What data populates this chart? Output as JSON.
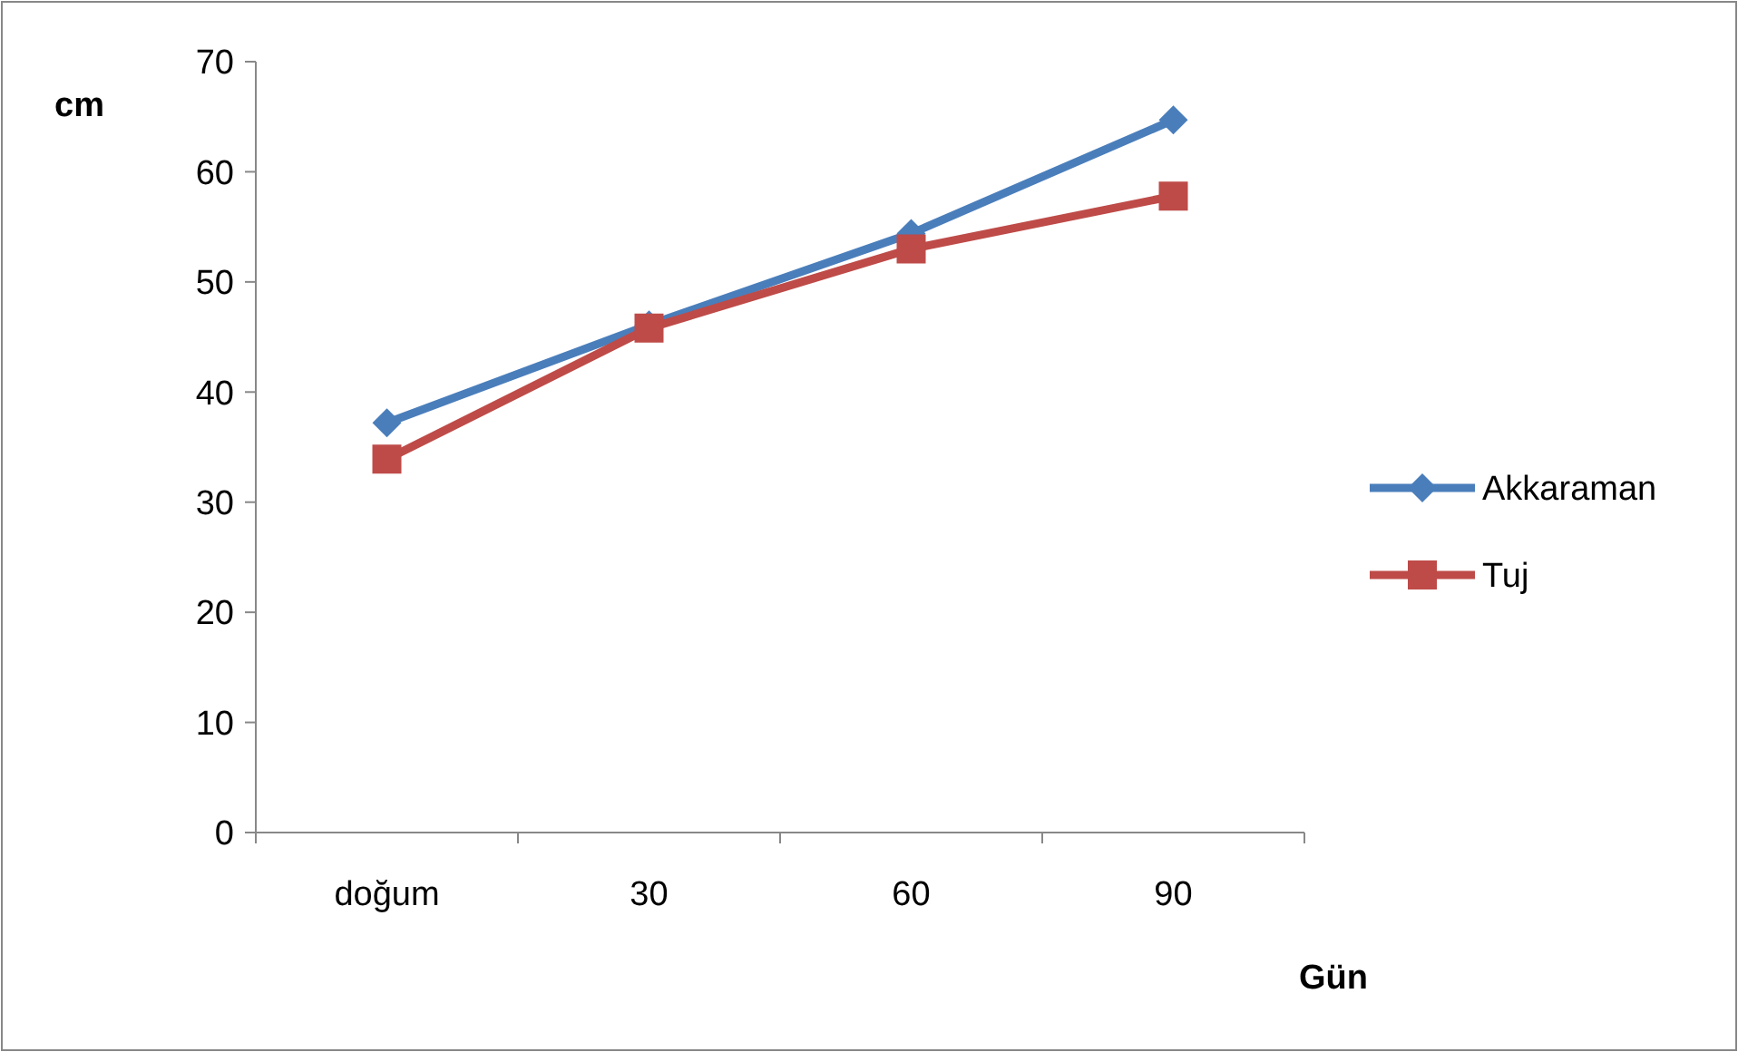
{
  "chart_data": {
    "type": "line",
    "xlabel": "Gün",
    "ylabel": "cm",
    "categories": [
      "doğum",
      "30",
      "60",
      "90"
    ],
    "series": [
      {
        "name": "Akkaraman",
        "color": "#4a7ebb",
        "marker": "diamond",
        "values": [
          37.2,
          46.1,
          54.4,
          64.7
        ]
      },
      {
        "name": "Tuj",
        "color": "#be4b48",
        "marker": "square",
        "values": [
          33.9,
          45.8,
          53.0,
          57.8
        ]
      }
    ],
    "ylim": [
      0,
      70
    ],
    "yticks": [
      0,
      10,
      20,
      30,
      40,
      50,
      60,
      70
    ],
    "grid": false,
    "legend": "right",
    "line_style": "solid"
  }
}
